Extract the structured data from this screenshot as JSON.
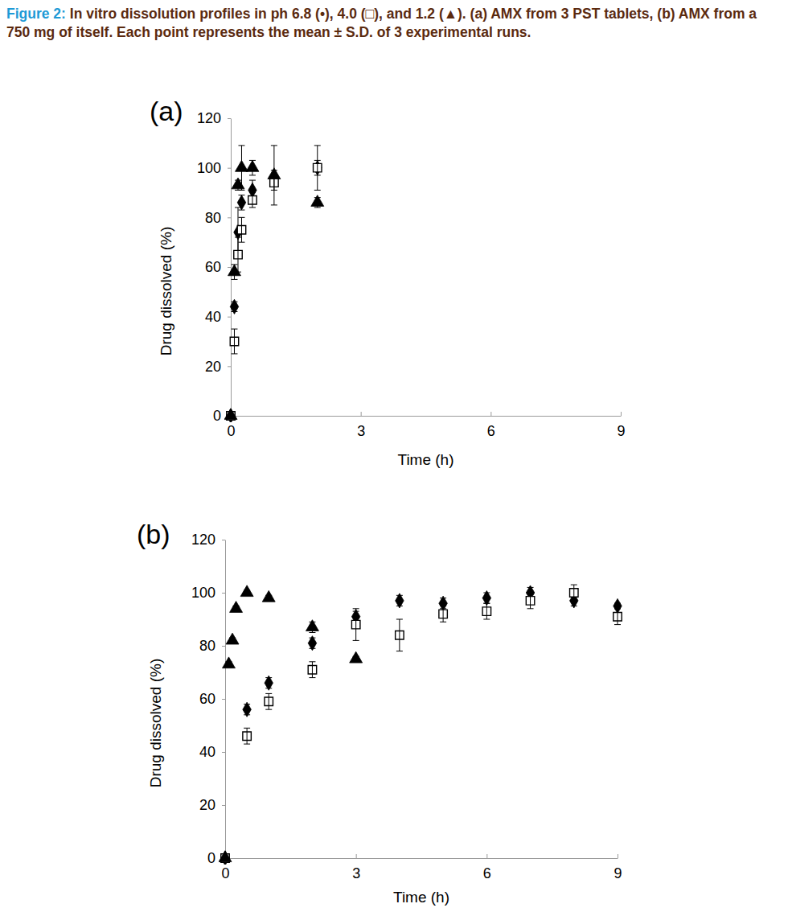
{
  "caption": {
    "label": "Figure 2:",
    "text": "In vitro dissolution profiles in ph 6.8 (•), 4.0 (□), and 1.2 (▲). (a) AMX from 3 PST tablets, (b) AMX from a 750 mg of itself. Each point represents the mean ± S.D. of 3 experimental runs."
  },
  "chart_data": [
    {
      "type": "scatter",
      "title": "(a)",
      "x_label": "Time (h)",
      "y_label": "Drug dissolved (%)",
      "x": [
        0,
        0.083,
        0.167,
        0.25,
        0.5,
        1,
        2
      ],
      "xlim": [
        0,
        9
      ],
      "xticks": [
        0,
        3,
        6,
        9
      ],
      "ylim": [
        0,
        120
      ],
      "yticks": [
        0,
        20,
        40,
        60,
        80,
        100,
        120
      ],
      "series": [
        {
          "color": "#000000",
          "marker": "diamond",
          "values": [
            0,
            44,
            74,
            86,
            91,
            96,
            100
          ],
          "errors": [
            0,
            2,
            10,
            3,
            4,
            3,
            9
          ]
        },
        {
          "color": "#000000",
          "marker": "square-open",
          "values": [
            0,
            30,
            65,
            75,
            87,
            94,
            100
          ],
          "errors": [
            0,
            5,
            7,
            5,
            3,
            3,
            3
          ]
        },
        {
          "color": "#000000",
          "marker": "triangle",
          "values": [
            0,
            58,
            93,
            100,
            100,
            97,
            86
          ],
          "errors": [
            0,
            3,
            2,
            9,
            3,
            12,
            2
          ]
        }
      ]
    },
    {
      "type": "scatter",
      "title": "(b)",
      "x_label": "Time (h)",
      "y_label": "Drug dissolved (%)",
      "x": [
        0,
        0.083,
        0.167,
        0.25,
        0.5,
        1,
        2,
        3,
        4,
        5,
        6,
        7,
        8,
        9
      ],
      "xlim": [
        0,
        9
      ],
      "xticks": [
        0,
        3,
        6,
        9
      ],
      "ylim": [
        0,
        120
      ],
      "yticks": [
        0,
        20,
        40,
        60,
        80,
        100,
        120
      ],
      "series": [
        {
          "color": "#000000",
          "marker": "diamond",
          "values": [
            0,
            null,
            null,
            null,
            56,
            66,
            81,
            91,
            97,
            96,
            98,
            100,
            97,
            95
          ],
          "errors": [
            0,
            null,
            null,
            null,
            2,
            2,
            2,
            2,
            2,
            2,
            2,
            2,
            2,
            1
          ]
        },
        {
          "color": "#000000",
          "marker": "square-open",
          "values": [
            0,
            null,
            null,
            null,
            46,
            59,
            71,
            88,
            84,
            92,
            93,
            97,
            100,
            91
          ],
          "errors": [
            0,
            null,
            null,
            null,
            3,
            3,
            3,
            6,
            6,
            3,
            3,
            3,
            3,
            3
          ]
        },
        {
          "color": "#000000",
          "marker": "triangle",
          "values": [
            0,
            73,
            82,
            94,
            100,
            98,
            87,
            75,
            null,
            null,
            null,
            null,
            null,
            null
          ],
          "errors": [
            0,
            1,
            1,
            1,
            1,
            1,
            2,
            1,
            null,
            null,
            null,
            null,
            null,
            null
          ]
        }
      ]
    }
  ]
}
